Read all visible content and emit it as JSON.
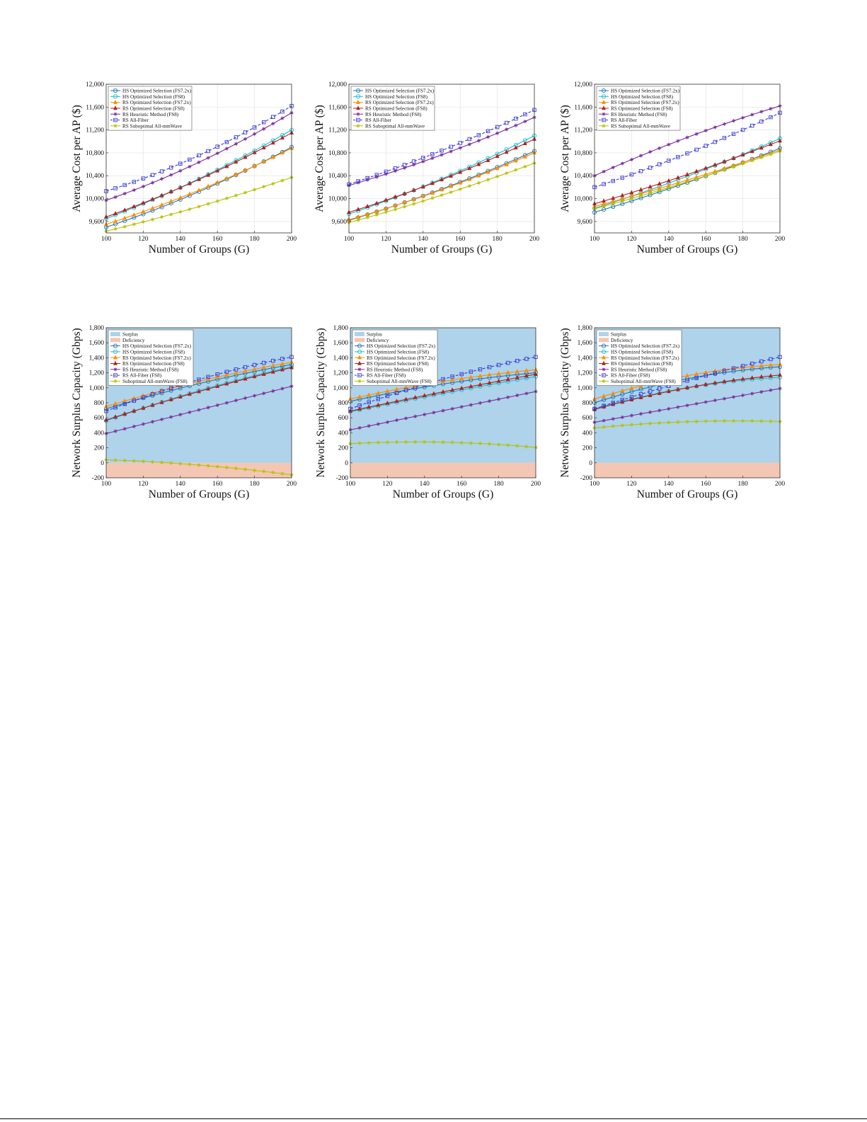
{
  "chart_data": [
    {
      "type": "line",
      "xlabel": "Number of Groups (G)",
      "ylabel": "Average Cost per AP ($)",
      "xlim": [
        100,
        200
      ],
      "ylim": [
        9400,
        12000
      ],
      "xticks": [
        100,
        120,
        140,
        160,
        180,
        200
      ],
      "xtick_labels": [
        "100",
        "120",
        "140",
        "160",
        "180",
        "200"
      ],
      "yticks": [
        9600,
        10000,
        10400,
        10800,
        11200,
        11600,
        12000
      ],
      "ytick_labels": [
        "9,600",
        "10,000",
        "10,400",
        "10,800",
        "11,200",
        "11,600",
        "12,000"
      ],
      "grid": true,
      "legend_position": "top-left",
      "x": [
        100,
        105,
        110,
        115,
        120,
        125,
        130,
        135,
        140,
        145,
        150,
        155,
        160,
        165,
        170,
        175,
        180,
        185,
        190,
        195,
        200
      ],
      "series": [
        {
          "name": "HS Optimized Selection (FS7.2x)",
          "color": "#1f77b4",
          "marker": "circle",
          "dash": false,
          "start": 9500,
          "end": 10900,
          "curve": -80
        },
        {
          "name": "HS Optimized Selection (FS8)",
          "color": "#17becf",
          "marker": "circle",
          "dash": false,
          "start": 9650,
          "end": 11200,
          "curve": -80
        },
        {
          "name": "RS Optimized Selection (FS7.2x)",
          "color": "#ff8c00",
          "marker": "triangle",
          "dash": false,
          "start": 9550,
          "end": 10880,
          "curve": -70
        },
        {
          "name": "RS Optimized Selection (FS8)",
          "color": "#b22222",
          "marker": "triangle",
          "dash": false,
          "start": 9680,
          "end": 11150,
          "curve": -80
        },
        {
          "name": "RS Heuristic Method (FS8)",
          "color": "#7b2d9b",
          "marker": "star",
          "dash": false,
          "start": 9970,
          "end": 11500,
          "curve": -100
        },
        {
          "name": "RS All-Fiber",
          "color": "#3a3ad8",
          "marker": "square",
          "dash": true,
          "start": 10130,
          "end": 11620,
          "curve": -120
        },
        {
          "name": "RS Suboptimal All-mmWave",
          "color": "#b5c200",
          "marker": "star",
          "dash": false,
          "start": 9430,
          "end": 10370,
          "curve": -40
        }
      ]
    },
    {
      "type": "line",
      "xlabel": "Number of Groups (G)",
      "ylabel": "Average Cost per AP ($)",
      "xlim": [
        100,
        200
      ],
      "ylim": [
        9400,
        12000
      ],
      "xticks": [
        100,
        120,
        140,
        160,
        180,
        200
      ],
      "xtick_labels": [
        "100",
        "120",
        "140",
        "160",
        "180",
        "200"
      ],
      "yticks": [
        9600,
        10000,
        10400,
        10800,
        11200,
        11600,
        12000
      ],
      "ytick_labels": [
        "9,600",
        "10,000",
        "10,400",
        "10,800",
        "11,200",
        "11,600",
        "12,000"
      ],
      "grid": true,
      "legend_position": "top-left",
      "x": [
        100,
        105,
        110,
        115,
        120,
        125,
        130,
        135,
        140,
        145,
        150,
        155,
        160,
        165,
        170,
        175,
        180,
        185,
        190,
        195,
        200
      ],
      "series": [
        {
          "name": "HS Optimized Selection (FS7.2x)",
          "color": "#1f77b4",
          "marker": "circle",
          "dash": false,
          "start": 9620,
          "end": 10830,
          "curve": -60
        },
        {
          "name": "HS Optimized Selection (FS8)",
          "color": "#17becf",
          "marker": "circle",
          "dash": false,
          "start": 9730,
          "end": 11100,
          "curve": -70
        },
        {
          "name": "RS Optimized Selection (FS7.2x)",
          "color": "#ff8c00",
          "marker": "triangle",
          "dash": false,
          "start": 9630,
          "end": 10800,
          "curve": -60
        },
        {
          "name": "RS Optimized Selection (FS8)",
          "color": "#b22222",
          "marker": "triangle",
          "dash": false,
          "start": 9760,
          "end": 11040,
          "curve": -70
        },
        {
          "name": "RS Heuristic Method (FS8)",
          "color": "#7b2d9b",
          "marker": "star",
          "dash": false,
          "start": 10230,
          "end": 11420,
          "curve": -60
        },
        {
          "name": "RS All-Fiber",
          "color": "#3a3ad8",
          "marker": "square",
          "dash": true,
          "start": 10250,
          "end": 11550,
          "curve": -60
        },
        {
          "name": "RS Suboptimal All-mmWave",
          "color": "#b5c200",
          "marker": "star",
          "dash": false,
          "start": 9580,
          "end": 10620,
          "curve": -40
        }
      ]
    },
    {
      "type": "line",
      "xlabel": "Number of Groups (G)",
      "ylabel": "Average Cost per AP ($)",
      "xlim": [
        100,
        200
      ],
      "ylim": [
        9400,
        12000
      ],
      "xticks": [
        100,
        120,
        140,
        160,
        180,
        200
      ],
      "xtick_labels": [
        "100",
        "120",
        "140",
        "160",
        "180",
        "200"
      ],
      "yticks": [
        9600,
        10000,
        10400,
        10800,
        11200,
        11600,
        12000
      ],
      "ytick_labels": [
        "9,600",
        "10,000",
        "10,400",
        "10,800",
        "11,200",
        "11,600",
        "12,000"
      ],
      "grid": true,
      "legend_position": "top-left",
      "x": [
        100,
        105,
        110,
        115,
        120,
        125,
        130,
        135,
        140,
        145,
        150,
        155,
        160,
        165,
        170,
        175,
        180,
        185,
        190,
        195,
        200
      ],
      "series": [
        {
          "name": "HS Optimized Selection (FS7.2x)",
          "color": "#1f77b4",
          "marker": "circle",
          "dash": false,
          "start": 9760,
          "end": 10880,
          "curve": -40
        },
        {
          "name": "HS Optimized Selection (FS8)",
          "color": "#17becf",
          "marker": "circle",
          "dash": false,
          "start": 9830,
          "end": 11050,
          "curve": -50
        },
        {
          "name": "RS Optimized Selection (FS7.2x)",
          "color": "#ff8c00",
          "marker": "triangle",
          "dash": false,
          "start": 9860,
          "end": 10850,
          "curve": -30
        },
        {
          "name": "RS Optimized Selection (FS8)",
          "color": "#b22222",
          "marker": "triangle",
          "dash": false,
          "start": 9910,
          "end": 11010,
          "curve": -40
        },
        {
          "name": "RS Heuristic Method (FS8)",
          "color": "#7b2d9b",
          "marker": "star",
          "dash": false,
          "start": 10400,
          "end": 11620,
          "curve": 60
        },
        {
          "name": "RS All-Fiber",
          "color": "#3a3ad8",
          "marker": "square",
          "dash": true,
          "start": 10200,
          "end": 11500,
          "curve": -60
        },
        {
          "name": "RS Suboptimal All-mmWave",
          "color": "#b5c200",
          "marker": "star",
          "dash": false,
          "start": 9820,
          "end": 10830,
          "curve": -30
        }
      ]
    },
    {
      "type": "line",
      "xlabel": "Number of Groups (G)",
      "ylabel": "Network Surplus Capacity (Gbps)",
      "xlim": [
        100,
        200
      ],
      "ylim": [
        -200,
        1800
      ],
      "xticks": [
        100,
        120,
        140,
        160,
        180,
        200
      ],
      "xtick_labels": [
        "100",
        "120",
        "140",
        "160",
        "180",
        "200"
      ],
      "yticks": [
        -200,
        0,
        200,
        400,
        600,
        800,
        1000,
        1200,
        1400,
        1600,
        1800
      ],
      "ytick_labels": [
        "-200",
        "0",
        "200",
        "400",
        "600",
        "800",
        "1,000",
        "1,200",
        "1,400",
        "1,600",
        "1,800"
      ],
      "grid": false,
      "legend_position": "top-left",
      "regions": [
        {
          "name": "Surplus",
          "color": "#aed3ea",
          "from": 0,
          "to": 1800
        },
        {
          "name": "Deficiency",
          "color": "#f4c6b4",
          "from": -200,
          "to": 0
        }
      ],
      "x": [
        100,
        105,
        110,
        115,
        120,
        125,
        130,
        135,
        140,
        145,
        150,
        155,
        160,
        165,
        170,
        175,
        180,
        185,
        190,
        195,
        200
      ],
      "series": [
        {
          "name": "HS Optimized Selection (FS7.2x)",
          "color": "#1f77b4",
          "marker": "circle",
          "dash": false,
          "start": 720,
          "end": 1310,
          "curve": 40
        },
        {
          "name": "HS Optimized Selection (FS8)",
          "color": "#17becf",
          "marker": "circle",
          "dash": false,
          "start": 560,
          "end": 1280,
          "curve": 40
        },
        {
          "name": "RS Optimized Selection (FS7.2x)",
          "color": "#ff8c00",
          "marker": "triangle",
          "dash": false,
          "start": 750,
          "end": 1340,
          "curve": 40
        },
        {
          "name": "RS Optimized Selection (FS8)",
          "color": "#b22222",
          "marker": "triangle",
          "dash": false,
          "start": 570,
          "end": 1270,
          "curve": 30
        },
        {
          "name": "RS Heuristic Method (FS8)",
          "color": "#7b2d9b",
          "marker": "star",
          "dash": false,
          "start": 390,
          "end": 1020,
          "curve": 0
        },
        {
          "name": "RS All-Fiber (FS8)",
          "color": "#3a3ad8",
          "marker": "square",
          "dash": true,
          "start": 690,
          "end": 1410,
          "curve": 60
        },
        {
          "name": "Suboptimal All-mmWave (FS8)",
          "color": "#b5c200",
          "marker": "star",
          "dash": false,
          "start": 40,
          "end": -160,
          "curve": 30
        }
      ]
    },
    {
      "type": "line",
      "xlabel": "Number of Groups (G)",
      "ylabel": "Network Surplus Capacity (Gbps)",
      "xlim": [
        100,
        200
      ],
      "ylim": [
        -200,
        1800
      ],
      "xticks": [
        100,
        120,
        140,
        160,
        180,
        200
      ],
      "xtick_labels": [
        "100",
        "120",
        "140",
        "160",
        "180",
        "200"
      ],
      "yticks": [
        -200,
        0,
        200,
        400,
        600,
        800,
        1000,
        1200,
        1400,
        1600,
        1800
      ],
      "ytick_labels": [
        "-200",
        "0",
        "200",
        "400",
        "600",
        "800",
        "1,000",
        "1,200",
        "1,400",
        "1,600",
        "1,800"
      ],
      "grid": false,
      "legend_position": "top-left",
      "regions": [
        {
          "name": "Surplus",
          "color": "#aed3ea",
          "from": 0,
          "to": 1800
        },
        {
          "name": "Deficiency",
          "color": "#f4c6b4",
          "from": -200,
          "to": 0
        }
      ],
      "x": [
        100,
        105,
        110,
        115,
        120,
        125,
        130,
        135,
        140,
        145,
        150,
        155,
        160,
        165,
        170,
        175,
        180,
        185,
        190,
        195,
        200
      ],
      "series": [
        {
          "name": "HS Optimized Selection (FS7.2x)",
          "color": "#1f77b4",
          "marker": "circle",
          "dash": false,
          "start": 820,
          "end": 1200,
          "curve": 40
        },
        {
          "name": "HS Optimized Selection (FS8)",
          "color": "#17becf",
          "marker": "circle",
          "dash": false,
          "start": 680,
          "end": 1150,
          "curve": 10
        },
        {
          "name": "RS Optimized Selection (FS7.2x)",
          "color": "#ff8c00",
          "marker": "triangle",
          "dash": false,
          "start": 850,
          "end": 1240,
          "curve": 40
        },
        {
          "name": "RS Optimized Selection (FS8)",
          "color": "#b22222",
          "marker": "triangle",
          "dash": false,
          "start": 690,
          "end": 1180,
          "curve": 10
        },
        {
          "name": "RS Heuristic Method (FS8)",
          "color": "#7b2d9b",
          "marker": "star",
          "dash": false,
          "start": 440,
          "end": 950,
          "curve": 0
        },
        {
          "name": "RS All-Fiber (FS8)",
          "color": "#3a3ad8",
          "marker": "square",
          "dash": true,
          "start": 720,
          "end": 1410,
          "curve": 50
        },
        {
          "name": "Suboptimal All-mmWave (FS8)",
          "color": "#b5c200",
          "marker": "star",
          "dash": false,
          "start": 255,
          "end": 205,
          "curve": 45
        }
      ]
    },
    {
      "type": "line",
      "xlabel": "Number of Groups (G)",
      "ylabel": "Network Surplus Capacity (Gbps)",
      "xlim": [
        100,
        200
      ],
      "ylim": [
        -200,
        1800
      ],
      "xticks": [
        100,
        120,
        140,
        160,
        180,
        200
      ],
      "xtick_labels": [
        "100",
        "120",
        "140",
        "160",
        "180",
        "200"
      ],
      "yticks": [
        -200,
        0,
        200,
        400,
        600,
        800,
        1000,
        1200,
        1400,
        1600,
        1800
      ],
      "ytick_labels": [
        "-200",
        "0",
        "200",
        "400",
        "600",
        "800",
        "1,000",
        "1,200",
        "1,400",
        "1,600",
        "1,800"
      ],
      "grid": false,
      "legend_position": "top-left",
      "regions": [
        {
          "name": "Surplus",
          "color": "#aed3ea",
          "from": 0,
          "to": 1800
        },
        {
          "name": "Deficiency",
          "color": "#f4c6b4",
          "from": -200,
          "to": 0
        }
      ],
      "x": [
        100,
        105,
        110,
        115,
        120,
        125,
        130,
        135,
        140,
        145,
        150,
        155,
        160,
        165,
        170,
        175,
        180,
        185,
        190,
        195,
        200
      ],
      "series": [
        {
          "name": "HS Optimized Selection (FS7.2x)",
          "color": "#1f77b4",
          "marker": "circle",
          "dash": false,
          "start": 800,
          "end": 1280,
          "curve": 80
        },
        {
          "name": "HS Optimized Selection (FS8)",
          "color": "#17becf",
          "marker": "circle",
          "dash": false,
          "start": 720,
          "end": 1140,
          "curve": 70
        },
        {
          "name": "RS Optimized Selection (FS7.2x)",
          "color": "#ff8c00",
          "marker": "triangle",
          "dash": false,
          "start": 850,
          "end": 1310,
          "curve": 80
        },
        {
          "name": "RS Optimized Selection (FS8)",
          "color": "#b22222",
          "marker": "triangle",
          "dash": false,
          "start": 710,
          "end": 1170,
          "curve": 60
        },
        {
          "name": "RS Heuristic Method (FS8)",
          "color": "#7b2d9b",
          "marker": "star",
          "dash": false,
          "start": 540,
          "end": 990,
          "curve": 0
        },
        {
          "name": "RS All-Fiber (FS8)",
          "color": "#3a3ad8",
          "marker": "square",
          "dash": true,
          "start": 720,
          "end": 1410,
          "curve": 30
        },
        {
          "name": "Suboptimal All-mmWave (FS8)",
          "color": "#b5c200",
          "marker": "star",
          "dash": false,
          "start": 465,
          "end": 550,
          "curve": 40
        }
      ]
    }
  ]
}
